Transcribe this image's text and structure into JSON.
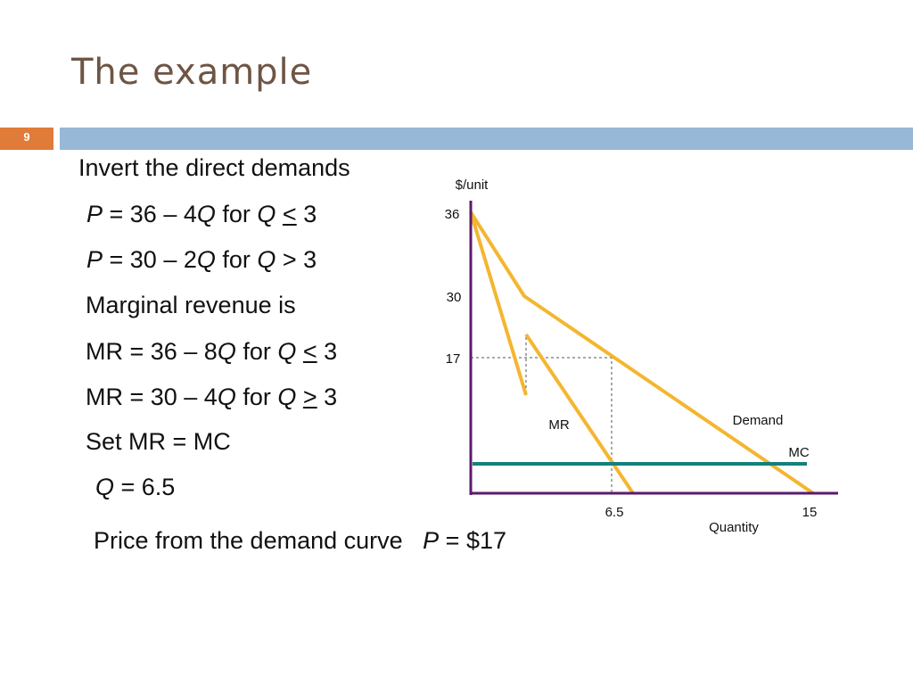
{
  "header": {
    "title": "The example",
    "slide_number": "9"
  },
  "body": {
    "lines": [
      [
        "Invert the direct demands"
      ],
      [
        "P",
        " = 36 – 4",
        "Q",
        " for ",
        "Q",
        " ",
        "<",
        " 3"
      ],
      [
        "P",
        " = 30 – 2",
        "Q",
        " for ",
        "Q",
        " > 3"
      ],
      [
        "Marginal revenue is"
      ],
      [
        "MR = 36 – 8",
        "Q",
        " for ",
        "Q",
        " ",
        "<",
        " 3"
      ],
      [
        "MR = 30 – 4",
        "Q",
        " for ",
        "Q",
        " ",
        ">",
        " 3"
      ],
      [
        "Set MR = MC"
      ],
      [
        "Q",
        " = 6.5"
      ],
      [
        "Price from the demand curve   ",
        "P",
        " = $17"
      ]
    ]
  },
  "diagram": {
    "y_axis_label": "$/unit",
    "x_axis_label": "Quantity",
    "y_labels": [
      "36",
      "30",
      "17"
    ],
    "x_labels": [
      "6.5",
      "15"
    ],
    "curve_labels": {
      "mr": "MR",
      "demand": "Demand",
      "mc": "MC"
    }
  }
}
